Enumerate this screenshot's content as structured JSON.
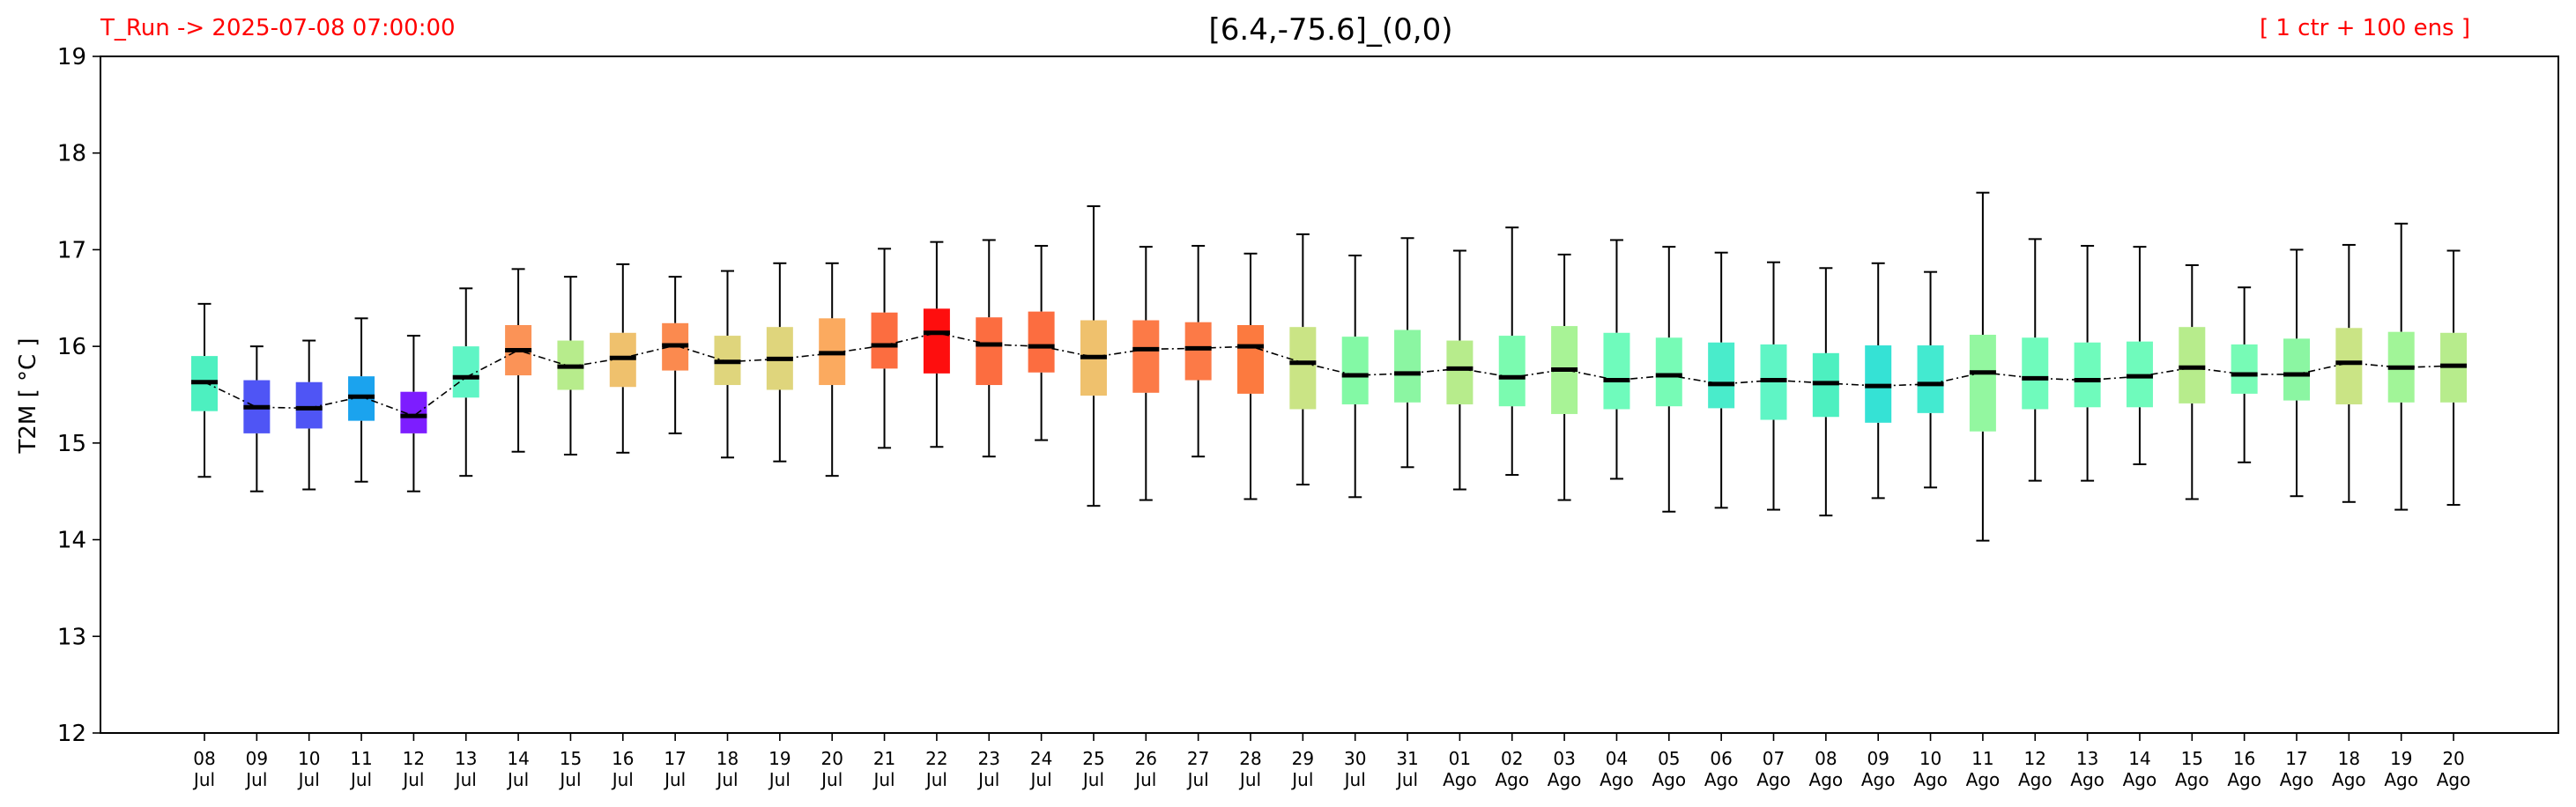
{
  "header": {
    "run_label": "T_Run -> 2025-07-08  07:00:00",
    "title": "[6.4,-75.6]_(0,0)",
    "ensemble_label": "[ 1 ctr + 100 ens ]"
  },
  "colors": {
    "header_text": "#ff0000",
    "median": "#000000",
    "whisker": "#000000",
    "trend_line": "#000000"
  },
  "chart_data": {
    "type": "box",
    "title": "[6.4,-75.6]_(0,0)",
    "ylabel": "T2M  [ °C ]",
    "ylim": [
      12,
      19
    ],
    "yticks": [
      12,
      13,
      14,
      15,
      16,
      17,
      18,
      19
    ],
    "grid": false,
    "median_line": "dashed",
    "categories": [
      {
        "day": "08",
        "month": "Jul"
      },
      {
        "day": "09",
        "month": "Jul"
      },
      {
        "day": "10",
        "month": "Jul"
      },
      {
        "day": "11",
        "month": "Jul"
      },
      {
        "day": "12",
        "month": "Jul"
      },
      {
        "day": "13",
        "month": "Jul"
      },
      {
        "day": "14",
        "month": "Jul"
      },
      {
        "day": "15",
        "month": "Jul"
      },
      {
        "day": "16",
        "month": "Jul"
      },
      {
        "day": "17",
        "month": "Jul"
      },
      {
        "day": "18",
        "month": "Jul"
      },
      {
        "day": "19",
        "month": "Jul"
      },
      {
        "day": "20",
        "month": "Jul"
      },
      {
        "day": "21",
        "month": "Jul"
      },
      {
        "day": "22",
        "month": "Jul"
      },
      {
        "day": "23",
        "month": "Jul"
      },
      {
        "day": "24",
        "month": "Jul"
      },
      {
        "day": "25",
        "month": "Jul"
      },
      {
        "day": "26",
        "month": "Jul"
      },
      {
        "day": "27",
        "month": "Jul"
      },
      {
        "day": "28",
        "month": "Jul"
      },
      {
        "day": "29",
        "month": "Jul"
      },
      {
        "day": "30",
        "month": "Jul"
      },
      {
        "day": "31",
        "month": "Jul"
      },
      {
        "day": "01",
        "month": "Ago"
      },
      {
        "day": "02",
        "month": "Ago"
      },
      {
        "day": "03",
        "month": "Ago"
      },
      {
        "day": "04",
        "month": "Ago"
      },
      {
        "day": "05",
        "month": "Ago"
      },
      {
        "day": "06",
        "month": "Ago"
      },
      {
        "day": "07",
        "month": "Ago"
      },
      {
        "day": "08",
        "month": "Ago"
      },
      {
        "day": "09",
        "month": "Ago"
      },
      {
        "day": "10",
        "month": "Ago"
      },
      {
        "day": "11",
        "month": "Ago"
      },
      {
        "day": "12",
        "month": "Ago"
      },
      {
        "day": "13",
        "month": "Ago"
      },
      {
        "day": "14",
        "month": "Ago"
      },
      {
        "day": "15",
        "month": "Ago"
      },
      {
        "day": "16",
        "month": "Ago"
      },
      {
        "day": "17",
        "month": "Ago"
      },
      {
        "day": "18",
        "month": "Ago"
      },
      {
        "day": "19",
        "month": "Ago"
      },
      {
        "day": "20",
        "month": "Ago"
      }
    ],
    "boxes": [
      {
        "min": 14.65,
        "q1": 15.33,
        "median": 15.63,
        "q3": 15.9,
        "max": 16.44,
        "color": "#4df0c0"
      },
      {
        "min": 14.5,
        "q1": 15.1,
        "median": 15.37,
        "q3": 15.65,
        "max": 16.0,
        "color": "#4f55f5"
      },
      {
        "min": 14.52,
        "q1": 15.15,
        "median": 15.36,
        "q3": 15.63,
        "max": 16.06,
        "color": "#4f55f5"
      },
      {
        "min": 14.6,
        "q1": 15.23,
        "median": 15.48,
        "q3": 15.69,
        "max": 16.29,
        "color": "#1ba3ee"
      },
      {
        "min": 14.5,
        "q1": 15.1,
        "median": 15.28,
        "q3": 15.53,
        "max": 16.11,
        "color": "#7d1dff"
      },
      {
        "min": 14.66,
        "q1": 15.47,
        "median": 15.68,
        "q3": 16.0,
        "max": 16.6,
        "color": "#5ff5c5"
      },
      {
        "min": 14.91,
        "q1": 15.7,
        "median": 15.96,
        "q3": 16.22,
        "max": 16.8,
        "color": "#fb9357"
      },
      {
        "min": 14.88,
        "q1": 15.55,
        "median": 15.79,
        "q3": 16.06,
        "max": 16.72,
        "color": "#b7ec8c"
      },
      {
        "min": 14.9,
        "q1": 15.58,
        "median": 15.88,
        "q3": 16.14,
        "max": 16.85,
        "color": "#efc16d"
      },
      {
        "min": 15.1,
        "q1": 15.75,
        "median": 16.01,
        "q3": 16.24,
        "max": 16.72,
        "color": "#fb8a4f"
      },
      {
        "min": 14.85,
        "q1": 15.6,
        "median": 15.84,
        "q3": 16.11,
        "max": 16.78,
        "color": "#dfd57c"
      },
      {
        "min": 14.81,
        "q1": 15.55,
        "median": 15.87,
        "q3": 16.2,
        "max": 16.86,
        "color": "#dfd57c"
      },
      {
        "min": 14.66,
        "q1": 15.6,
        "median": 15.93,
        "q3": 16.29,
        "max": 16.86,
        "color": "#fbaa5f"
      },
      {
        "min": 14.95,
        "q1": 15.77,
        "median": 16.01,
        "q3": 16.35,
        "max": 17.01,
        "color": "#fc6d40"
      },
      {
        "min": 14.96,
        "q1": 15.72,
        "median": 16.14,
        "q3": 16.39,
        "max": 17.08,
        "color": "#fe0e0e"
      },
      {
        "min": 14.86,
        "q1": 15.6,
        "median": 16.02,
        "q3": 16.3,
        "max": 17.1,
        "color": "#fc6d40"
      },
      {
        "min": 15.03,
        "q1": 15.73,
        "median": 16.0,
        "q3": 16.36,
        "max": 17.04,
        "color": "#fc6d40"
      },
      {
        "min": 14.35,
        "q1": 15.49,
        "median": 15.89,
        "q3": 16.27,
        "max": 17.45,
        "color": "#efc16d"
      },
      {
        "min": 14.41,
        "q1": 15.52,
        "median": 15.97,
        "q3": 16.27,
        "max": 17.03,
        "color": "#fc7a47"
      },
      {
        "min": 14.86,
        "q1": 15.65,
        "median": 15.98,
        "q3": 16.25,
        "max": 17.04,
        "color": "#fc7a47"
      },
      {
        "min": 14.42,
        "q1": 15.51,
        "median": 16.0,
        "q3": 16.22,
        "max": 16.96,
        "color": "#fc7a3f"
      },
      {
        "min": 14.57,
        "q1": 15.35,
        "median": 15.83,
        "q3": 16.2,
        "max": 17.16,
        "color": "#cae485"
      },
      {
        "min": 14.44,
        "q1": 15.4,
        "median": 15.7,
        "q3": 16.1,
        "max": 16.94,
        "color": "#83f9a5"
      },
      {
        "min": 14.75,
        "q1": 15.42,
        "median": 15.72,
        "q3": 16.17,
        "max": 17.12,
        "color": "#8bf6a2"
      },
      {
        "min": 14.52,
        "q1": 15.4,
        "median": 15.77,
        "q3": 16.06,
        "max": 16.99,
        "color": "#b7ec8c"
      },
      {
        "min": 14.67,
        "q1": 15.38,
        "median": 15.68,
        "q3": 16.11,
        "max": 17.23,
        "color": "#7bfbb0"
      },
      {
        "min": 14.41,
        "q1": 15.3,
        "median": 15.76,
        "q3": 16.21,
        "max": 16.95,
        "color": "#a8f396"
      },
      {
        "min": 14.63,
        "q1": 15.35,
        "median": 15.65,
        "q3": 16.14,
        "max": 17.1,
        "color": "#6ffbbc"
      },
      {
        "min": 14.29,
        "q1": 15.38,
        "median": 15.7,
        "q3": 16.09,
        "max": 17.03,
        "color": "#77fbb6"
      },
      {
        "min": 14.33,
        "q1": 15.36,
        "median": 15.61,
        "q3": 16.04,
        "max": 16.97,
        "color": "#49eccb"
      },
      {
        "min": 14.31,
        "q1": 15.24,
        "median": 15.65,
        "q3": 16.02,
        "max": 16.87,
        "color": "#5ff5c5"
      },
      {
        "min": 14.25,
        "q1": 15.27,
        "median": 15.62,
        "q3": 15.93,
        "max": 16.81,
        "color": "#4df0c0"
      },
      {
        "min": 14.43,
        "q1": 15.21,
        "median": 15.59,
        "q3": 16.01,
        "max": 16.86,
        "color": "#35e2d5"
      },
      {
        "min": 14.54,
        "q1": 15.31,
        "median": 15.61,
        "q3": 16.01,
        "max": 16.77,
        "color": "#43ead0"
      },
      {
        "min": 13.99,
        "q1": 15.12,
        "median": 15.73,
        "q3": 16.12,
        "max": 17.59,
        "color": "#93f7a0"
      },
      {
        "min": 14.61,
        "q1": 15.35,
        "median": 15.67,
        "q3": 16.09,
        "max": 17.11,
        "color": "#6ffbbc"
      },
      {
        "min": 14.61,
        "q1": 15.37,
        "median": 15.65,
        "q3": 16.04,
        "max": 17.04,
        "color": "#6ffbbc"
      },
      {
        "min": 14.78,
        "q1": 15.37,
        "median": 15.69,
        "q3": 16.05,
        "max": 17.03,
        "color": "#6ffbbc"
      },
      {
        "min": 14.42,
        "q1": 15.41,
        "median": 15.78,
        "q3": 16.2,
        "max": 16.84,
        "color": "#b7ec8c"
      },
      {
        "min": 14.8,
        "q1": 15.51,
        "median": 15.71,
        "q3": 16.02,
        "max": 16.61,
        "color": "#77fbb6"
      },
      {
        "min": 14.45,
        "q1": 15.44,
        "median": 15.71,
        "q3": 16.08,
        "max": 17.0,
        "color": "#8bf6a2"
      },
      {
        "min": 14.39,
        "q1": 15.4,
        "median": 15.83,
        "q3": 16.19,
        "max": 17.05,
        "color": "#cae485"
      },
      {
        "min": 14.31,
        "q1": 15.42,
        "median": 15.78,
        "q3": 16.15,
        "max": 17.27,
        "color": "#a1f598"
      },
      {
        "min": 14.36,
        "q1": 15.42,
        "median": 15.8,
        "q3": 16.14,
        "max": 16.99,
        "color": "#b7ec8c"
      }
    ]
  }
}
